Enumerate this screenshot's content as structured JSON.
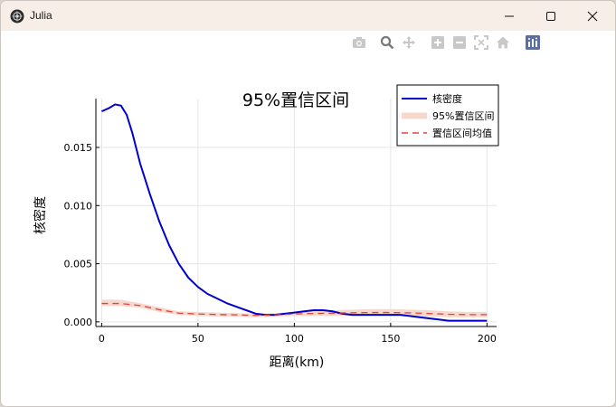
{
  "window": {
    "title": "Julia"
  },
  "modebar": {
    "icons": [
      "camera-icon",
      "zoom-icon",
      "pan-icon",
      "zoom-in-icon",
      "zoom-out-icon",
      "autoscale-icon",
      "home-icon",
      "plotly-logo-icon"
    ]
  },
  "colors": {
    "density_line": "#0000cc",
    "ci_band": "#f6d8cc",
    "ci_mean": "#e0443f"
  },
  "chart_data": {
    "type": "line",
    "title": "95%置信区间",
    "xlabel": "距离(km)",
    "ylabel": "核密度",
    "xlim": [
      -3,
      205
    ],
    "ylim": [
      -0.0004,
      0.0192
    ],
    "xticks": [
      0,
      50,
      100,
      150,
      200
    ],
    "xtick_labels": [
      "0",
      "50",
      "100",
      "150",
      "200"
    ],
    "yticks": [
      0.0,
      0.005,
      0.01,
      0.015
    ],
    "ytick_labels": [
      "0.000",
      "0.005",
      "0.010",
      "0.015"
    ],
    "grid": true,
    "legend_position": "top-right",
    "series": [
      {
        "name": "核密度",
        "kind": "line",
        "x": [
          0,
          4,
          7,
          10,
          13,
          16,
          20,
          25,
          30,
          35,
          40,
          45,
          50,
          55,
          60,
          65,
          70,
          75,
          80,
          85,
          90,
          95,
          100,
          105,
          110,
          115,
          120,
          125,
          130,
          135,
          140,
          145,
          150,
          155,
          160,
          165,
          170,
          175,
          180,
          185,
          190,
          195,
          200
        ],
        "y": [
          0.0181,
          0.0184,
          0.0187,
          0.0186,
          0.0178,
          0.0162,
          0.0136,
          0.011,
          0.0086,
          0.0066,
          0.005,
          0.0038,
          0.003,
          0.0024,
          0.002,
          0.0016,
          0.0013,
          0.001,
          0.0007,
          0.0006,
          0.0006,
          0.0007,
          0.0008,
          0.0009,
          0.001,
          0.001,
          0.0009,
          0.0007,
          0.0006,
          0.0006,
          0.0006,
          0.0006,
          0.0006,
          0.0006,
          0.0005,
          0.0004,
          0.0003,
          0.0002,
          0.0001,
          0.0001,
          0.0001,
          0.0001,
          0.0001
        ]
      },
      {
        "name": "95%置信区间",
        "kind": "band",
        "x": [
          0,
          10,
          20,
          30,
          40,
          50,
          60,
          70,
          80,
          90,
          100,
          110,
          120,
          130,
          140,
          150,
          160,
          170,
          180,
          190,
          200
        ],
        "lower": [
          0.00135,
          0.00135,
          0.0012,
          0.00085,
          0.0006,
          0.0005,
          0.00045,
          0.00045,
          0.0004,
          0.00045,
          0.0005,
          0.0005,
          0.0005,
          0.0005,
          0.0005,
          0.0005,
          0.00048,
          0.00045,
          0.0004,
          0.0004,
          0.0004
        ],
        "upper": [
          0.0019,
          0.0019,
          0.0016,
          0.00125,
          0.0009,
          0.00085,
          0.0008,
          0.00075,
          0.0007,
          0.00075,
          0.00085,
          0.00095,
          0.001,
          0.00105,
          0.0011,
          0.0011,
          0.00105,
          0.001,
          0.0009,
          0.00085,
          0.00085
        ]
      },
      {
        "name": "置信区间均值",
        "kind": "dashed",
        "x": [
          0,
          10,
          20,
          30,
          40,
          50,
          60,
          70,
          80,
          90,
          100,
          110,
          120,
          130,
          140,
          150,
          160,
          170,
          180,
          190,
          200
        ],
        "y": [
          0.00158,
          0.00158,
          0.0014,
          0.00105,
          0.00075,
          0.00068,
          0.00063,
          0.0006,
          0.00055,
          0.0006,
          0.00068,
          0.00072,
          0.00075,
          0.00078,
          0.0008,
          0.0008,
          0.00077,
          0.00072,
          0.00065,
          0.00062,
          0.00062
        ]
      }
    ]
  }
}
